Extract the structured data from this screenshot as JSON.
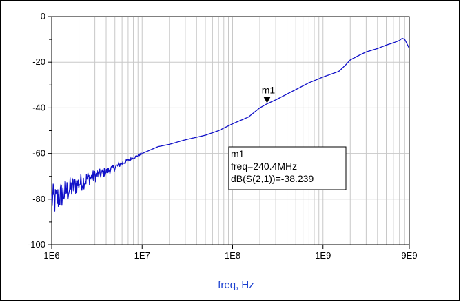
{
  "chart_data": {
    "type": "line",
    "xlabel": "freq, Hz",
    "ylabel": "",
    "xscale": "log",
    "xlim": [
      1000000,
      9000000000
    ],
    "ylim": [
      -100,
      0
    ],
    "yticks": [
      0,
      -20,
      -40,
      -60,
      -80,
      -100
    ],
    "ytick_labels": [
      "0",
      "-20",
      "-40",
      "-60",
      "-80",
      "-100"
    ],
    "xticks": [
      1000000,
      10000000,
      100000000,
      1000000000,
      9000000000
    ],
    "xtick_labels": [
      "1E6",
      "1E7",
      "1E8",
      "1E9",
      "9E9"
    ],
    "grid": true,
    "series": [
      {
        "color": "#1010c8",
        "x": [
          1000000,
          1100000,
          1200000,
          1300000,
          1500000,
          1700000,
          2000000,
          2500000,
          3000000,
          4000000,
          5000000,
          7000000,
          10000000,
          15000000,
          20000000,
          30000000,
          50000000,
          70000000,
          100000000,
          150000000,
          200000000,
          240400000,
          300000000,
          500000000,
          700000000,
          1000000000,
          1500000000,
          1800000000,
          2000000000,
          2500000000,
          3000000000,
          4000000000,
          5000000000,
          6000000000,
          7000000000,
          7500000000,
          8000000000,
          8500000000,
          9000000000
        ],
        "y": [
          -80,
          -81,
          -79,
          -78,
          -76,
          -75,
          -73,
          -71,
          -70,
          -68,
          -66,
          -63,
          -60,
          -57,
          -56,
          -54,
          -52,
          -50,
          -47,
          -44,
          -40,
          -38.239,
          -36.5,
          -32,
          -29,
          -26.5,
          -24,
          -21,
          -19,
          -17,
          -15.5,
          -14,
          -12.5,
          -11.5,
          -10.5,
          -9.5,
          -10,
          -12,
          -14
        ]
      }
    ],
    "noise_band": {
      "x_start": 1000000,
      "x_end": 10000000,
      "description": "noisy trace at low frequencies"
    }
  },
  "marker": {
    "name": "m1",
    "x": 240400000,
    "y": -38.239,
    "box_lines": [
      "m1",
      "freq=240.4MHz",
      "dB(S(2,1))=-38.239"
    ]
  }
}
